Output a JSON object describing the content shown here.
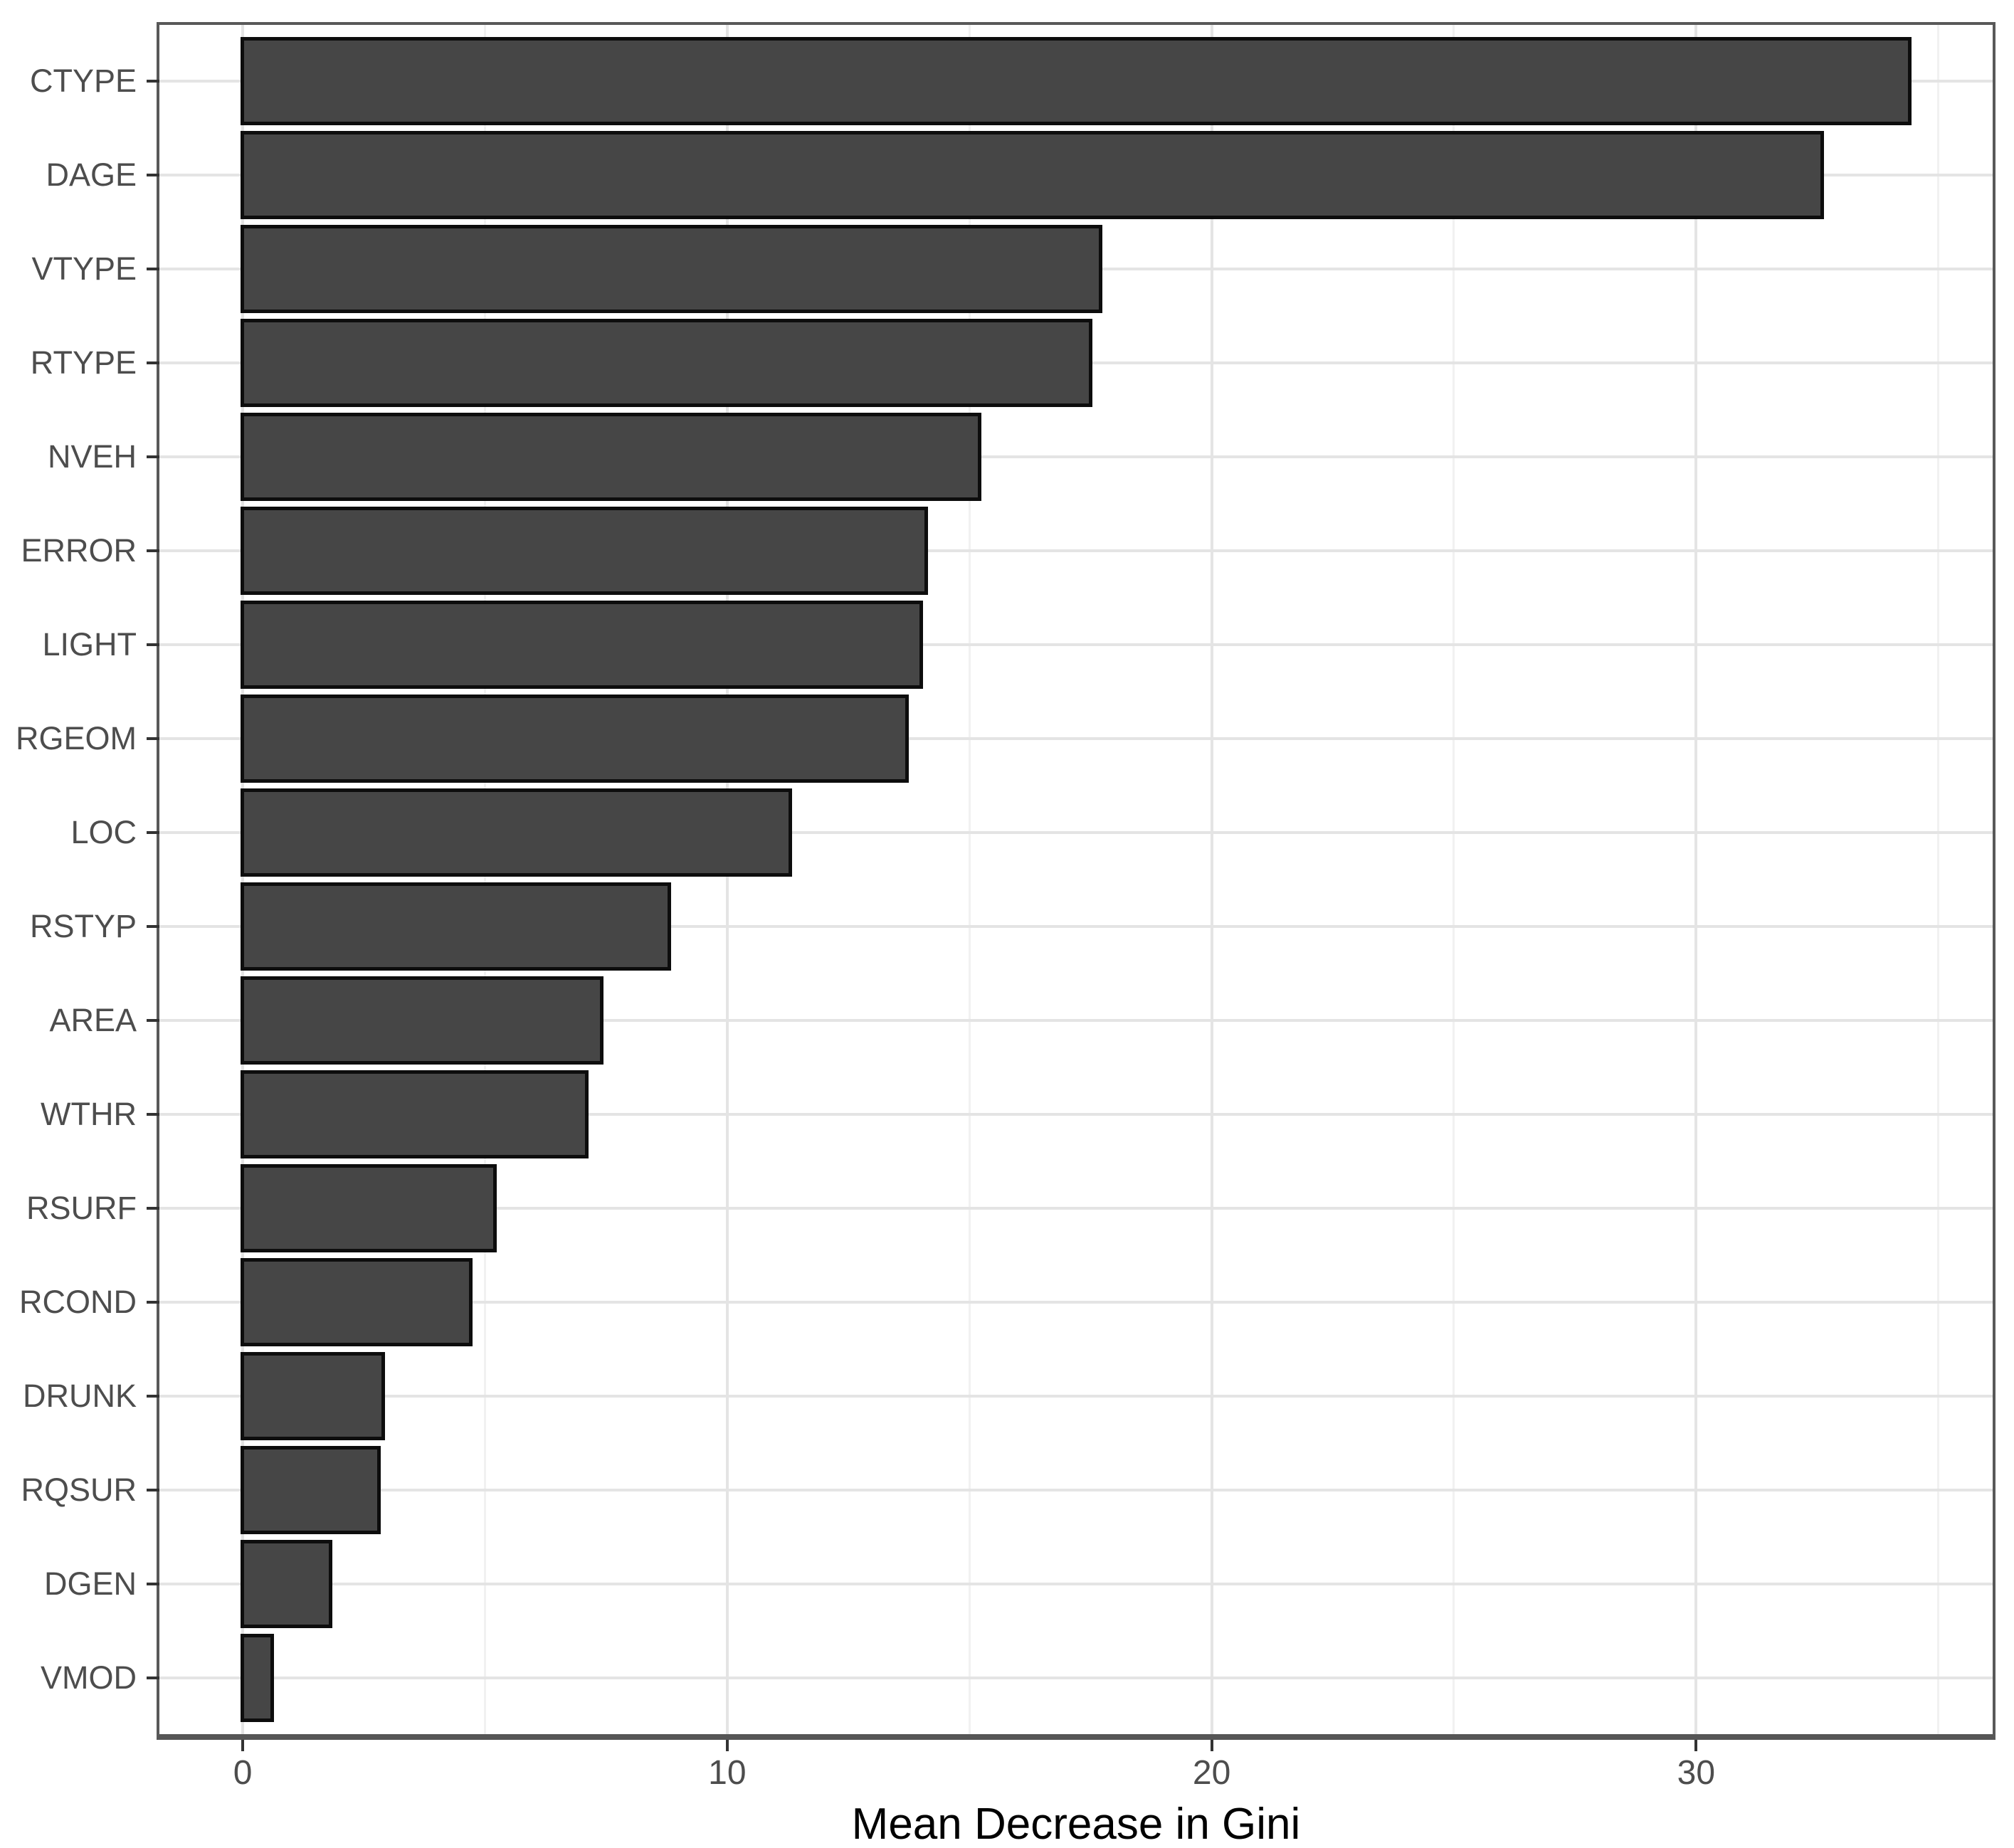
{
  "chart_data": {
    "type": "bar",
    "orientation": "horizontal",
    "title": "",
    "xlabel": "Mean Decrease in Gini",
    "ylabel": "",
    "categories": [
      "CTYPE",
      "DAGE",
      "VTYPE",
      "RTYPE",
      "NVEH",
      "ERROR",
      "LIGHT",
      "RGEOM",
      "LOC",
      "RSTYP",
      "AREA",
      "WTHR",
      "RSURF",
      "RCOND",
      "DRUNK",
      "RQSUR",
      "DGEN",
      "VMOD"
    ],
    "values": [
      34.4,
      32.6,
      17.7,
      17.5,
      15.2,
      14.1,
      14.0,
      13.7,
      11.3,
      8.8,
      7.4,
      7.1,
      5.2,
      4.7,
      2.9,
      2.8,
      1.8,
      0.6
    ],
    "x_major_ticks": [
      0,
      10,
      20,
      30
    ],
    "x_tick_labels": [
      "0",
      "10",
      "20",
      "30"
    ],
    "x_minor_ticks": [
      5,
      15,
      25,
      35
    ],
    "xlim": [
      -1.72,
      36.12
    ],
    "bar_width_fraction": 0.9,
    "grid": "vertical major+minor, horizontal major at category centers",
    "legend": "none",
    "colors": {
      "background": "#ffffff",
      "bar_fill": "#464646",
      "bar_stroke": "#0d0d0d",
      "panel_border": "#595959",
      "axis_line": "#565656",
      "grid_major": "#e4e4e4",
      "grid_minor": "#f1f1f1",
      "tick_mark": "#333333",
      "tick_label": "#4d4d4d",
      "axis_title": "#000000"
    }
  }
}
